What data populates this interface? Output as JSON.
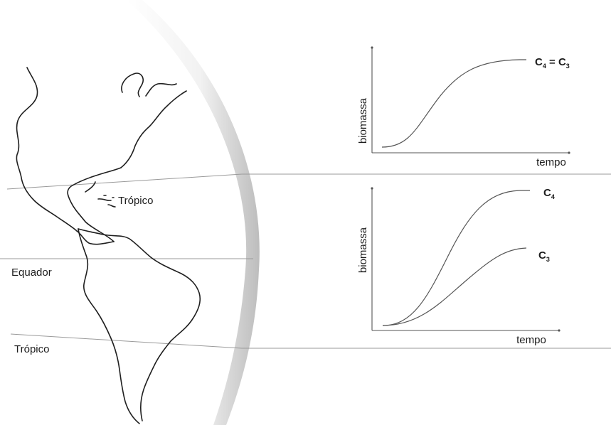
{
  "map": {
    "labels": {
      "tropic_north": "Trópico",
      "equator": "Equador",
      "tropic_south": "Trópico"
    }
  },
  "graph_top": {
    "ylabel": "biomassa",
    "xlabel": "tempo",
    "curve_label_main": "C",
    "curve_label_sub1": "4",
    "curve_label_eq": " = C",
    "curve_label_sub2": "3"
  },
  "graph_bottom": {
    "ylabel": "biomassa",
    "xlabel": "tempo",
    "c4_main": "C",
    "c4_sub": "4",
    "c3_main": "C",
    "c3_sub": "3"
  }
}
